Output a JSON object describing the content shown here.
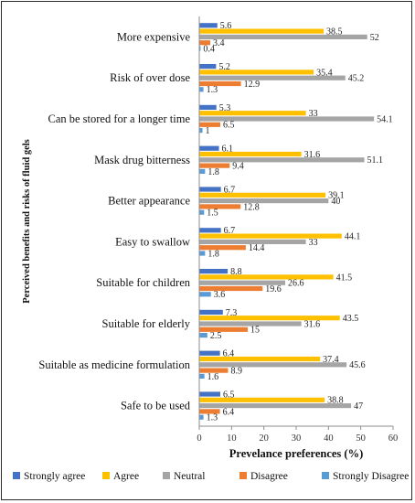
{
  "chart_data": {
    "type": "bar",
    "orientation": "horizontal",
    "xlabel": "Prevelance preferences (%)",
    "ylabel": "Perceived benefits and risks of fluid gels",
    "xlim": [
      0,
      60
    ],
    "xticks": [
      "0",
      "10",
      "20",
      "30",
      "40",
      "50",
      "60"
    ],
    "grid": false,
    "legend_position": "bottom",
    "categories": [
      "More expensive",
      "Risk of over dose",
      "Can be stored for a longer time",
      "Mask drug bitterness",
      "Better appearance",
      "Easy to swallow",
      "Suitable for children",
      "Suitable for elderly",
      "Suitable as medicine formulation",
      "Safe to be used"
    ],
    "series": [
      {
        "name": "Strongly agree",
        "color": "#4472C4",
        "values": [
          5.6,
          5.2,
          5.3,
          6.1,
          6.7,
          6.7,
          8.8,
          7.3,
          6.4,
          6.5
        ]
      },
      {
        "name": "Agree",
        "color": "#FFC000",
        "values": [
          38.5,
          35.4,
          33,
          31.6,
          39.1,
          44.1,
          41.5,
          43.5,
          37.4,
          38.8
        ]
      },
      {
        "name": "Neutral",
        "color": "#A5A5A5",
        "values": [
          52,
          45.2,
          54.1,
          51.1,
          40,
          33,
          26.6,
          31.6,
          45.6,
          47
        ]
      },
      {
        "name": "Disagree",
        "color": "#ED7D31",
        "values": [
          3.4,
          12.9,
          6.5,
          9.4,
          12.8,
          14.4,
          19.6,
          15,
          8.9,
          6.4
        ]
      },
      {
        "name": "Strongly Disagree",
        "color": "#5B9BD5",
        "values": [
          0.4,
          1.3,
          1,
          1.8,
          1.5,
          1.8,
          3.6,
          2.5,
          1.6,
          1.3
        ]
      }
    ],
    "value_labels": [
      [
        "5.6",
        "38.5",
        "52",
        "3.4",
        "0.4"
      ],
      [
        "5.2",
        "35.4",
        "45.2",
        "12.9",
        "1.3"
      ],
      [
        "5.3",
        "33",
        "54.1",
        "6.5",
        "1"
      ],
      [
        "6.1",
        "31.6",
        "51.1",
        "9.4",
        "1.8"
      ],
      [
        "6.7",
        "39.1",
        "40",
        "12.8",
        "1.5"
      ],
      [
        "6.7",
        "44.1",
        "33",
        "14.4",
        "1.8"
      ],
      [
        "8.8",
        "41.5",
        "26.6",
        "19.6",
        "3.6"
      ],
      [
        "7.3",
        "43.5",
        "31.6",
        "15",
        "2.5"
      ],
      [
        "6.4",
        "37.4",
        "45.6",
        "8.9",
        "1.6"
      ],
      [
        "6.5",
        "38.8",
        "47",
        "6.4",
        "1.3"
      ]
    ]
  }
}
